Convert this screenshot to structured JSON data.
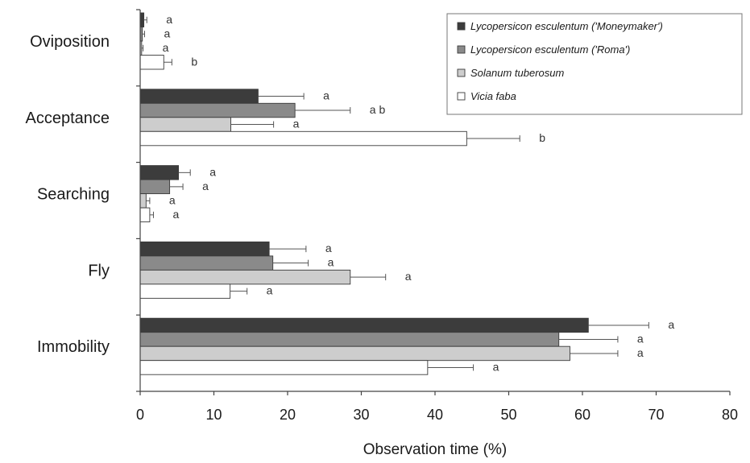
{
  "chart_data": {
    "type": "bar",
    "orientation": "horizontal",
    "title": "",
    "xlabel": "Observation time (%)",
    "ylabel": "",
    "xlim": [
      0,
      80
    ],
    "xticks": [
      0,
      10,
      20,
      30,
      40,
      50,
      60,
      70,
      80
    ],
    "grid": false,
    "legend_position": "top-right",
    "categories": [
      "Oviposition",
      "Acceptance",
      "Searching",
      "Fly",
      "Immobility"
    ],
    "series": [
      {
        "name": "Lycopersicon esculentum ('Moneymaker')",
        "color": "#3c3c3c",
        "values": [
          0.5,
          16,
          5.2,
          17.5,
          60.8
        ],
        "errors": [
          0.4,
          6.2,
          1.6,
          5.0,
          8.2
        ],
        "letters": [
          "a",
          "a",
          "a",
          "a",
          "a"
        ]
      },
      {
        "name": "Lycopersicon esculentum ('Roma')",
        "color": "#8a8a8a",
        "values": [
          0.3,
          21,
          4.0,
          18,
          56.8
        ],
        "errors": [
          0.3,
          7.5,
          1.8,
          4.8,
          8.0
        ],
        "letters": [
          "a",
          "a b",
          "a",
          "a",
          "a"
        ]
      },
      {
        "name": "Solanum tuberosum",
        "color": "#cdcdcd",
        "values": [
          0.2,
          12.3,
          0.8,
          28.5,
          58.3
        ],
        "errors": [
          0.2,
          5.8,
          0.5,
          4.8,
          6.5
        ],
        "letters": [
          "a",
          "a",
          "a",
          "a",
          "a"
        ]
      },
      {
        "name": "Vicia faba",
        "color": "#ffffff",
        "values": [
          3.2,
          44.3,
          1.3,
          12.2,
          39
        ],
        "errors": [
          1.1,
          7.2,
          0.5,
          2.3,
          6.2
        ],
        "letters": [
          "b",
          "b",
          "a",
          "a",
          "a"
        ]
      }
    ]
  }
}
